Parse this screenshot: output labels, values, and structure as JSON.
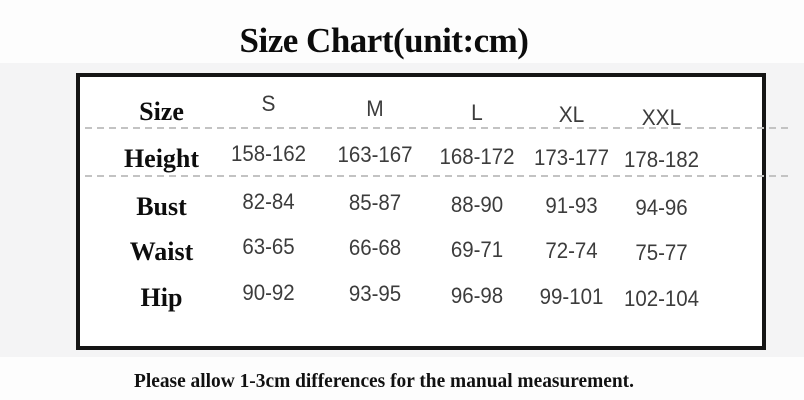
{
  "title": "Size Chart(unit:cm)",
  "footer": "Please allow 1-3cm differences for the manual measurement.",
  "colors": {
    "table_border": "#151515",
    "table_background": "#ffffff",
    "band_background": "#f4f4f5",
    "dashed_divider": "#c3c3c3",
    "label_text": "#0d0d0d",
    "value_text": "#3c3c3c"
  },
  "chart_data": {
    "type": "table",
    "title": "Size Chart(unit:cm)",
    "unit": "cm",
    "columns": [
      "Size",
      "S",
      "M",
      "L",
      "XL",
      "XXL"
    ],
    "rows": [
      {
        "label": "Height",
        "values": [
          "158-162",
          "163-167",
          "168-172",
          "173-177",
          "178-182"
        ]
      },
      {
        "label": "Bust",
        "values": [
          "82-84",
          "85-87",
          "88-90",
          "91-93",
          "94-96"
        ]
      },
      {
        "label": "Waist",
        "values": [
          "63-65",
          "66-68",
          "69-71",
          "72-74",
          "75-77"
        ]
      },
      {
        "label": "Hip",
        "values": [
          "90-92",
          "93-95",
          "96-98",
          "99-101",
          "102-104"
        ]
      }
    ],
    "note": "Please allow 1-3cm differences for the manual measurement.",
    "layout": {
      "dashed_dividers_after_rows": [
        "header",
        "Height"
      ],
      "legend": "none",
      "grid": "partial"
    }
  }
}
